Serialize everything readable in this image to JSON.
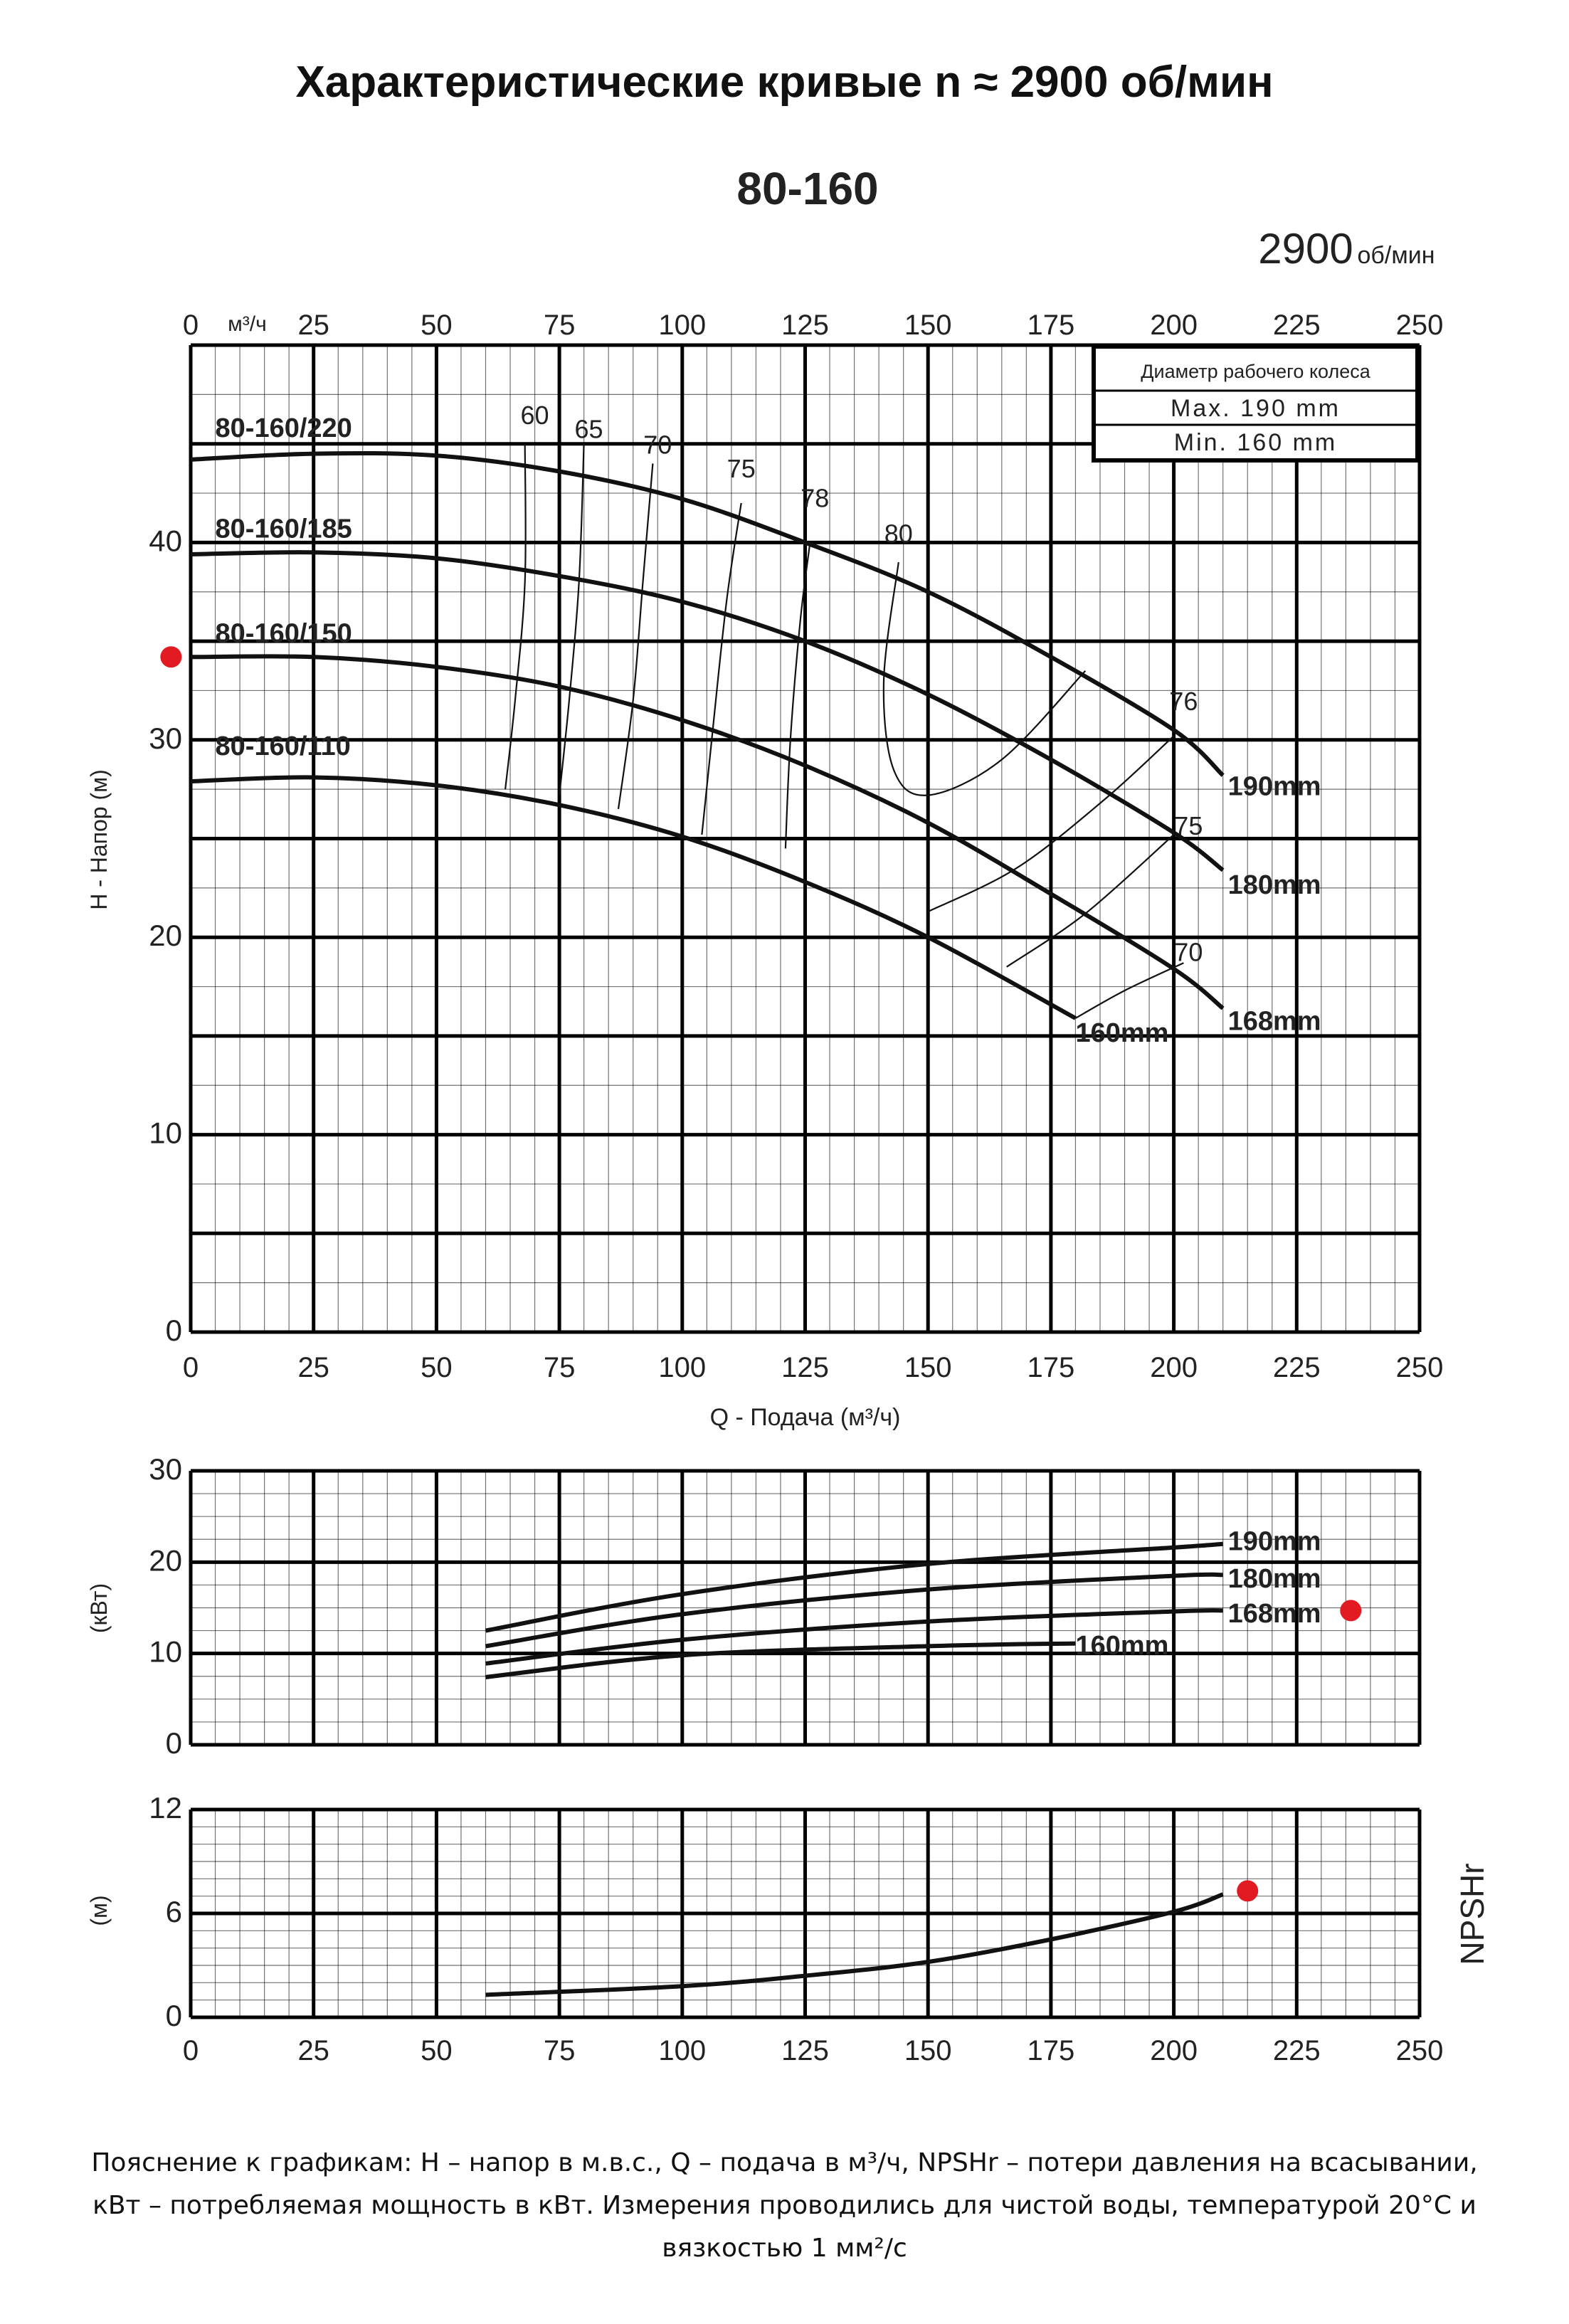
{
  "title": "Характеристические кривые n ≈ 2900 об/мин",
  "footnote": "Пояснение к графикам: H – напор в м.в.с., Q – подача в м³/ч, NPSHr – потери давления на всасывании, кВт – потребляемая мощность в кВт. Измерения проводились для чистой воды, температурой 20°C и вязкостью 1 мм²/с",
  "chart_data": [
    {
      "type": "line",
      "title": "80-160",
      "speed_value": "2900",
      "speed_unit": "об/мин",
      "top_axis_unit": "м³/ч",
      "xlabel": "Q - Подача (м³/ч)",
      "ylabel": "H - Напор (м)",
      "xlim": [
        0,
        250
      ],
      "ylim": [
        0,
        50
      ],
      "xticks": [
        "0",
        "25",
        "50",
        "75",
        "100",
        "125",
        "150",
        "175",
        "200",
        "225",
        "250"
      ],
      "yticks": [
        "0",
        "10",
        "20",
        "30",
        "40"
      ],
      "grid": true,
      "impeller_box": {
        "header": "Диаметр рабочего колеса",
        "max": "Max.  190 mm",
        "min": "Min.  160 mm"
      },
      "series": [
        {
          "name": "190mm",
          "model_label": "80-160/220",
          "x": [
            0,
            25,
            50,
            75,
            100,
            125,
            150,
            175,
            200,
            210
          ],
          "y": [
            44.2,
            44.5,
            44.4,
            43.6,
            42.2,
            40.0,
            37.5,
            34.2,
            30.5,
            28.2
          ]
        },
        {
          "name": "180mm",
          "model_label": "80-160/185",
          "x": [
            0,
            25,
            50,
            75,
            100,
            125,
            150,
            175,
            200,
            210
          ],
          "y": [
            39.4,
            39.5,
            39.2,
            38.3,
            37.0,
            35.0,
            32.3,
            29.0,
            25.3,
            23.4
          ]
        },
        {
          "name": "168mm",
          "model_label": "80-160/150",
          "x": [
            0,
            25,
            50,
            75,
            100,
            125,
            150,
            175,
            200,
            210
          ],
          "y": [
            34.2,
            34.2,
            33.7,
            32.7,
            31.0,
            28.7,
            25.8,
            22.2,
            18.4,
            16.4
          ]
        },
        {
          "name": "160mm",
          "model_label": "80-160/110",
          "x": [
            0,
            25,
            50,
            75,
            100,
            125,
            150,
            180
          ],
          "y": [
            27.9,
            28.1,
            27.7,
            26.7,
            25.1,
            22.8,
            20.0,
            15.9
          ]
        }
      ],
      "efficiency_labels": [
        "60",
        "65",
        "70",
        "75",
        "78",
        "80",
        "76",
        "75",
        "70"
      ]
    },
    {
      "type": "line",
      "ylabel": "(кВт)",
      "xlim": [
        0,
        250
      ],
      "ylim": [
        0,
        30
      ],
      "yticks": [
        "0",
        "10",
        "20",
        "30"
      ],
      "grid": true,
      "series": [
        {
          "name": "190mm",
          "x": [
            60,
            100,
            150,
            200,
            210
          ],
          "y": [
            12.5,
            16.5,
            19.8,
            21.6,
            22.0
          ]
        },
        {
          "name": "180mm",
          "x": [
            60,
            100,
            150,
            200,
            210
          ],
          "y": [
            10.8,
            14.3,
            17.0,
            18.5,
            18.6
          ]
        },
        {
          "name": "168mm",
          "x": [
            60,
            100,
            150,
            200,
            210
          ],
          "y": [
            8.9,
            11.5,
            13.5,
            14.6,
            14.7
          ]
        },
        {
          "name": "160mm",
          "x": [
            60,
            100,
            150,
            180
          ],
          "y": [
            7.4,
            9.8,
            10.8,
            11.1
          ]
        }
      ]
    },
    {
      "type": "line",
      "ylabel": "(м)",
      "side_label": "NPSHr",
      "xlim": [
        0,
        250
      ],
      "ylim": [
        0,
        12
      ],
      "xticks": [
        "0",
        "25",
        "50",
        "75",
        "100",
        "125",
        "150",
        "175",
        "200",
        "225",
        "250"
      ],
      "yticks": [
        "0",
        "6",
        "12"
      ],
      "grid": true,
      "series": [
        {
          "x": [
            60,
            100,
            125,
            150,
            175,
            200,
            210
          ],
          "y": [
            1.3,
            1.8,
            2.4,
            3.2,
            4.5,
            6.1,
            7.1
          ]
        }
      ]
    }
  ],
  "colors": {
    "grid": "#000000",
    "curve": "#111111",
    "marker": "#e21b22"
  }
}
